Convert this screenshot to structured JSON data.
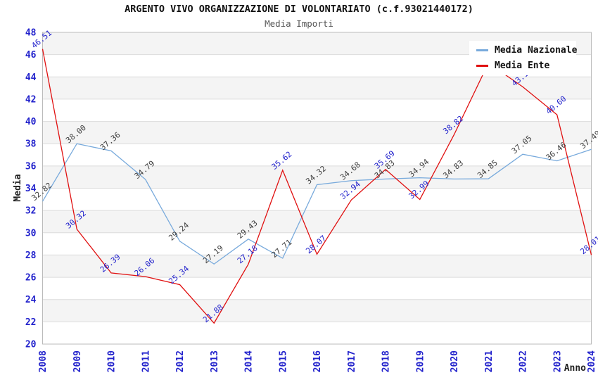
{
  "header": {
    "title": "ARGENTO VIVO ORGANIZZAZIONE DI VOLONTARIATO (c.f.93021440172)",
    "subtitle": "Media Importi"
  },
  "legend": {
    "position": "top-right",
    "items": [
      {
        "label": "Media Nazionale",
        "color": "#78aadc"
      },
      {
        "label": "Media Ente",
        "color": "#e01010"
      }
    ]
  },
  "chart_data": {
    "type": "line",
    "title": "ARGENTO VIVO ORGANIZZAZIONE DI VOLONTARIATO (c.f.93021440172)",
    "subtitle": "Media Importi",
    "xlabel": "Anno",
    "ylabel": "Media",
    "x": [
      "2008",
      "2009",
      "2010",
      "2011",
      "2012",
      "2013",
      "2014",
      "2015",
      "2016",
      "2017",
      "2018",
      "2019",
      "2020",
      "2021",
      "2022",
      "2023",
      "2024"
    ],
    "series": [
      {
        "name": "Media Nazionale",
        "color": "#78aadc",
        "label_color": "#404040",
        "values": [
          32.82,
          38.0,
          37.36,
          34.79,
          29.24,
          27.19,
          29.43,
          27.71,
          34.32,
          34.68,
          34.83,
          34.94,
          34.83,
          34.85,
          37.05,
          36.46,
          37.49
        ]
      },
      {
        "name": "Media Ente",
        "color": "#e01010",
        "label_color": "#2222cc",
        "values": [
          46.51,
          30.32,
          26.39,
          26.06,
          25.34,
          21.88,
          27.18,
          35.62,
          28.07,
          32.94,
          35.69,
          32.99,
          38.82,
          45.24,
          43.11,
          40.6,
          28.01
        ]
      }
    ],
    "ylim": [
      20,
      48
    ],
    "ytick_step": 2,
    "grid": true,
    "legend_position": "top-right",
    "styles": {
      "band_colors": [
        "#f4f4f4",
        "#ffffff"
      ],
      "gridline_color": "#dcdcdc",
      "border_color": "#bbbbbb",
      "tick_label_color": "#2222cc",
      "axis_title_color": "#222222"
    }
  }
}
